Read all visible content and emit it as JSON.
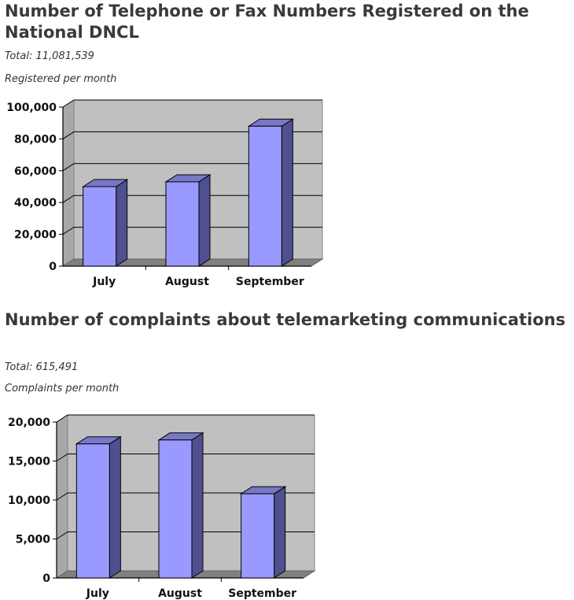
{
  "charts": [
    {
      "title": "Number of Telephone or Fax Numbers Registered on the National DNCL",
      "total_label": "Total:",
      "total_value": "11,081,539",
      "subtitle": "Registered per month"
    },
    {
      "title": "Number of complaints about telemarketing communications",
      "total_label": "Total",
      "total_value": ": 615,491",
      "subtitle": "Complaints per month"
    }
  ],
  "chart_data": [
    {
      "type": "bar",
      "categories": [
        "July",
        "August",
        "September"
      ],
      "values": [
        50000,
        53000,
        88000
      ],
      "ylim": [
        0,
        100000
      ],
      "yticks": [
        "0",
        "20,000",
        "40,000",
        "60,000",
        "80,000",
        "100,000"
      ],
      "grid": true,
      "colors": {
        "bar_front": "#9999ff",
        "bar_side": "#505090",
        "bar_top": "#7878c8",
        "wall": "#c0c0c0",
        "floor": "#808080"
      }
    },
    {
      "type": "bar",
      "categories": [
        "July",
        "August",
        "September"
      ],
      "values": [
        17200,
        17700,
        10800
      ],
      "ylim": [
        0,
        20000
      ],
      "yticks": [
        "0",
        "5,000",
        "10,000",
        "15,000",
        "20,000"
      ],
      "grid": true,
      "colors": {
        "bar_front": "#9999ff",
        "bar_side": "#505090",
        "bar_top": "#7878c8",
        "wall": "#c0c0c0",
        "floor": "#808080"
      }
    }
  ]
}
